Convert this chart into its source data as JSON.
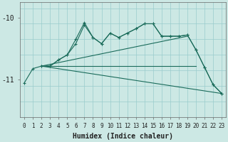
{
  "xlabel": "Humidex (Indice chaleur)",
  "bg_color": "#cce8e4",
  "line_color": "#1a6b5a",
  "grid_color": "#99cccc",
  "xlim": [
    -0.5,
    23.5
  ],
  "ylim": [
    -11.6,
    -9.75
  ],
  "yticks": [
    -11,
    -10
  ],
  "ytick_labels": [
    "-11",
    "-10"
  ],
  "xticks": [
    0,
    1,
    2,
    3,
    4,
    5,
    6,
    7,
    8,
    9,
    10,
    11,
    12,
    13,
    14,
    15,
    16,
    17,
    18,
    19,
    20,
    21,
    22,
    23
  ],
  "line1_x": [
    0,
    1,
    2,
    3,
    4,
    5,
    6,
    7,
    8,
    9,
    10,
    11,
    12,
    13,
    14,
    15,
    16,
    17,
    18,
    19,
    20,
    21,
    22,
    23
  ],
  "line1_y": [
    -11.05,
    -10.82,
    -10.78,
    -10.78,
    -10.68,
    -10.6,
    -10.42,
    -10.12,
    -10.32,
    -10.42,
    -10.25,
    -10.32,
    -10.25,
    -10.18,
    -10.1,
    -10.1,
    -10.3,
    -10.3,
    -10.3,
    -10.28,
    -10.52,
    -10.8,
    -11.08,
    -11.22
  ],
  "line2_x": [
    2,
    3,
    4,
    5,
    6,
    7,
    8,
    9,
    10,
    11,
    12,
    13,
    14,
    15,
    16,
    17,
    18,
    19,
    20,
    21,
    22,
    23
  ],
  "line2_y": [
    -10.78,
    -10.78,
    -10.68,
    -10.6,
    -10.35,
    -10.08,
    -10.32,
    -10.42,
    -10.25,
    -10.32,
    -10.25,
    -10.18,
    -10.1,
    -10.1,
    -10.3,
    -10.3,
    -10.3,
    -10.28,
    -10.52,
    -10.8,
    -11.08,
    -11.22
  ],
  "line3_x": [
    2,
    20
  ],
  "line3_y": [
    -10.78,
    -10.78
  ],
  "line4_x": [
    2,
    23
  ],
  "line4_y": [
    -10.78,
    -11.22
  ],
  "line5_x": [
    2,
    19
  ],
  "line5_y": [
    -10.78,
    -10.3
  ]
}
